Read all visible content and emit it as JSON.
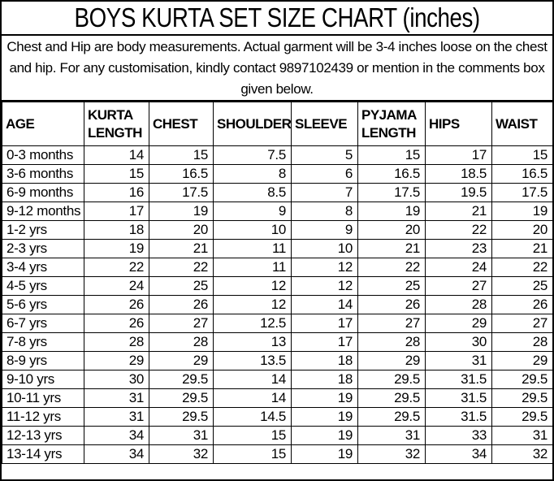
{
  "title": "BOYS KURTA SET SIZE CHART (inches)",
  "note": "Chest and Hip are body measurements. Actual garment will be 3-4 inches loose on the chest and hip. For any customisation, kindly contact 9897102439 or mention in the comments box given below.",
  "contact_phone": "9897102439",
  "units": "inches",
  "colors": {
    "text": "#000000",
    "background": "#ffffff",
    "border": "#000000"
  },
  "table": {
    "columns": [
      "AGE",
      "KURTA LENGTH",
      "CHEST",
      "SHOULDER",
      "SLEEVE",
      "PYJAMA LENGTH",
      "HIPS",
      "WAIST"
    ],
    "rows": [
      [
        "0-3 months",
        "14",
        "15",
        "7.5",
        "5",
        "15",
        "17",
        "15"
      ],
      [
        "3-6 months",
        "15",
        "16.5",
        "8",
        "6",
        "16.5",
        "18.5",
        "16.5"
      ],
      [
        "6-9 months",
        "16",
        "17.5",
        "8.5",
        "7",
        "17.5",
        "19.5",
        "17.5"
      ],
      [
        "9-12 months",
        "17",
        "19",
        "9",
        "8",
        "19",
        "21",
        "19"
      ],
      [
        "1-2 yrs",
        "18",
        "20",
        "10",
        "9",
        "20",
        "22",
        "20"
      ],
      [
        "2-3 yrs",
        "19",
        "21",
        "11",
        "10",
        "21",
        "23",
        "21"
      ],
      [
        "3-4 yrs",
        "22",
        "22",
        "11",
        "12",
        "22",
        "24",
        "22"
      ],
      [
        "4-5 yrs",
        "24",
        "25",
        "12",
        "12",
        "25",
        "27",
        "25"
      ],
      [
        "5-6 yrs",
        "26",
        "26",
        "12",
        "14",
        "26",
        "28",
        "26"
      ],
      [
        "6-7 yrs",
        "26",
        "27",
        "12.5",
        "17",
        "27",
        "29",
        "27"
      ],
      [
        "7-8 yrs",
        "28",
        "28",
        "13",
        "17",
        "28",
        "30",
        "28"
      ],
      [
        "8-9 yrs",
        "29",
        "29",
        "13.5",
        "18",
        "29",
        "31",
        "29"
      ],
      [
        "9-10 yrs",
        "30",
        "29.5",
        "14",
        "18",
        "29.5",
        "31.5",
        "29.5"
      ],
      [
        "10-11 yrs",
        "31",
        "29.5",
        "14",
        "19",
        "29.5",
        "31.5",
        "29.5"
      ],
      [
        "11-12 yrs",
        "31",
        "29.5",
        "14.5",
        "19",
        "29.5",
        "31.5",
        "29.5"
      ],
      [
        "12-13 yrs",
        "34",
        "31",
        "15",
        "19",
        "31",
        "33",
        "31"
      ],
      [
        "13-14 yrs",
        "34",
        "32",
        "15",
        "19",
        "32",
        "34",
        "32"
      ]
    ]
  }
}
